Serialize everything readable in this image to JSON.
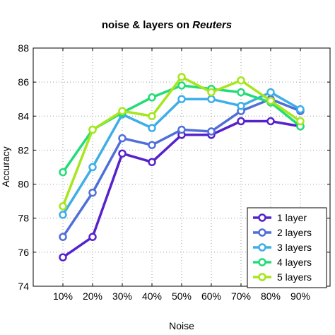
{
  "chart_data": {
    "type": "line",
    "title_prefix": "noise & layers on ",
    "title_emphasis": "Reuters",
    "xlabel": "Noise",
    "ylabel": "Accuracy",
    "categories": [
      "10%",
      "20%",
      "30%",
      "40%",
      "50%",
      "60%",
      "70%",
      "80%",
      "90%"
    ],
    "ylim": [
      74,
      88
    ],
    "yticks": [
      74,
      76,
      78,
      80,
      82,
      84,
      86,
      88
    ],
    "grid": true,
    "legend_position": "bottom-right",
    "series": [
      {
        "name": "1 layer",
        "color": "#5522cc",
        "values": [
          75.7,
          76.9,
          81.8,
          81.3,
          82.9,
          82.9,
          83.7,
          83.7,
          83.4
        ]
      },
      {
        "name": "2 layers",
        "color": "#4f6fd8",
        "values": [
          76.9,
          79.5,
          82.7,
          82.3,
          83.2,
          83.1,
          84.3,
          85.0,
          84.3
        ]
      },
      {
        "name": "3 layers",
        "color": "#3eaee8",
        "values": [
          78.2,
          81.0,
          84.1,
          83.3,
          85.0,
          85.0,
          84.6,
          85.4,
          84.4
        ]
      },
      {
        "name": "4 layers",
        "color": "#22dd77",
        "values": [
          80.7,
          83.2,
          84.2,
          85.1,
          85.8,
          85.6,
          85.4,
          84.8,
          83.4
        ]
      },
      {
        "name": "5 layers",
        "color": "#a6e61c",
        "values": [
          78.7,
          83.2,
          84.3,
          84.0,
          86.3,
          85.4,
          86.1,
          84.9,
          83.7
        ]
      }
    ]
  }
}
